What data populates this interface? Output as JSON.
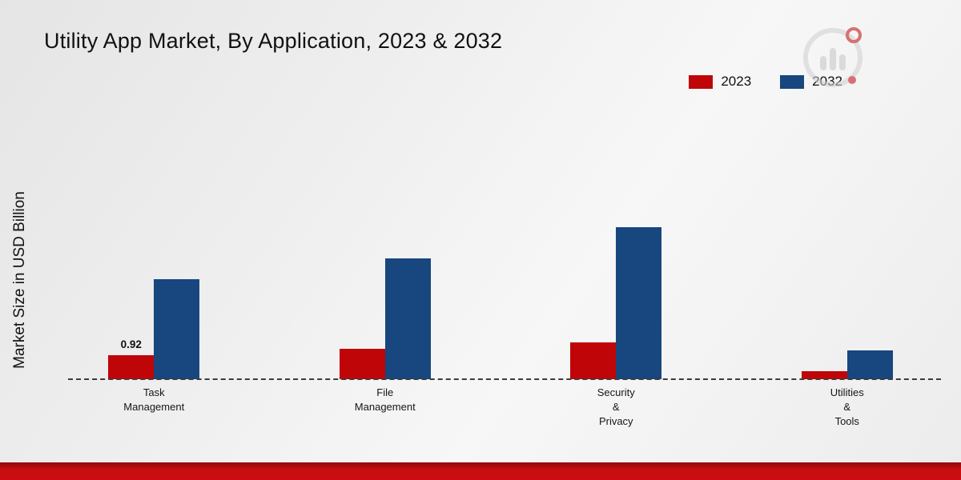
{
  "title": "Utility App Market, By Application, 2023 & 2032",
  "y_axis_label": "Market Size in USD Billion",
  "legend": [
    {
      "label": "2023",
      "color": "#c00508"
    },
    {
      "label": "2032",
      "color": "#17477e"
    }
  ],
  "brand_logo": "bar-chart-circle-logo",
  "footer": {
    "stripe_color": "#c90d10"
  },
  "chart_data": {
    "type": "bar",
    "title": "Utility App Market, By Application, 2023 & 2032",
    "xlabel": "",
    "ylabel": "Market Size in USD Billion",
    "categories": [
      "Task Management",
      "File Management",
      "Security & Privacy",
      "Utilities & Tools"
    ],
    "category_label_lines": [
      [
        "Task",
        "Management"
      ],
      [
        "File",
        "Management"
      ],
      [
        "Security",
        "&",
        "Privacy"
      ],
      [
        "Utilities",
        "&",
        "Tools"
      ]
    ],
    "series": [
      {
        "name": "2023",
        "color": "#c00508",
        "values": [
          0.92,
          1.15,
          1.4,
          0.3
        ]
      },
      {
        "name": "2032",
        "color": "#17477e",
        "values": [
          3.8,
          4.6,
          5.8,
          1.1
        ]
      }
    ],
    "data_labels": [
      {
        "category_index": 0,
        "series_index": 0,
        "text": "0.92"
      }
    ],
    "ylim": [
      0,
      6.2
    ],
    "grid": false,
    "legend_position": "top-right",
    "baseline_style": "dashed"
  }
}
